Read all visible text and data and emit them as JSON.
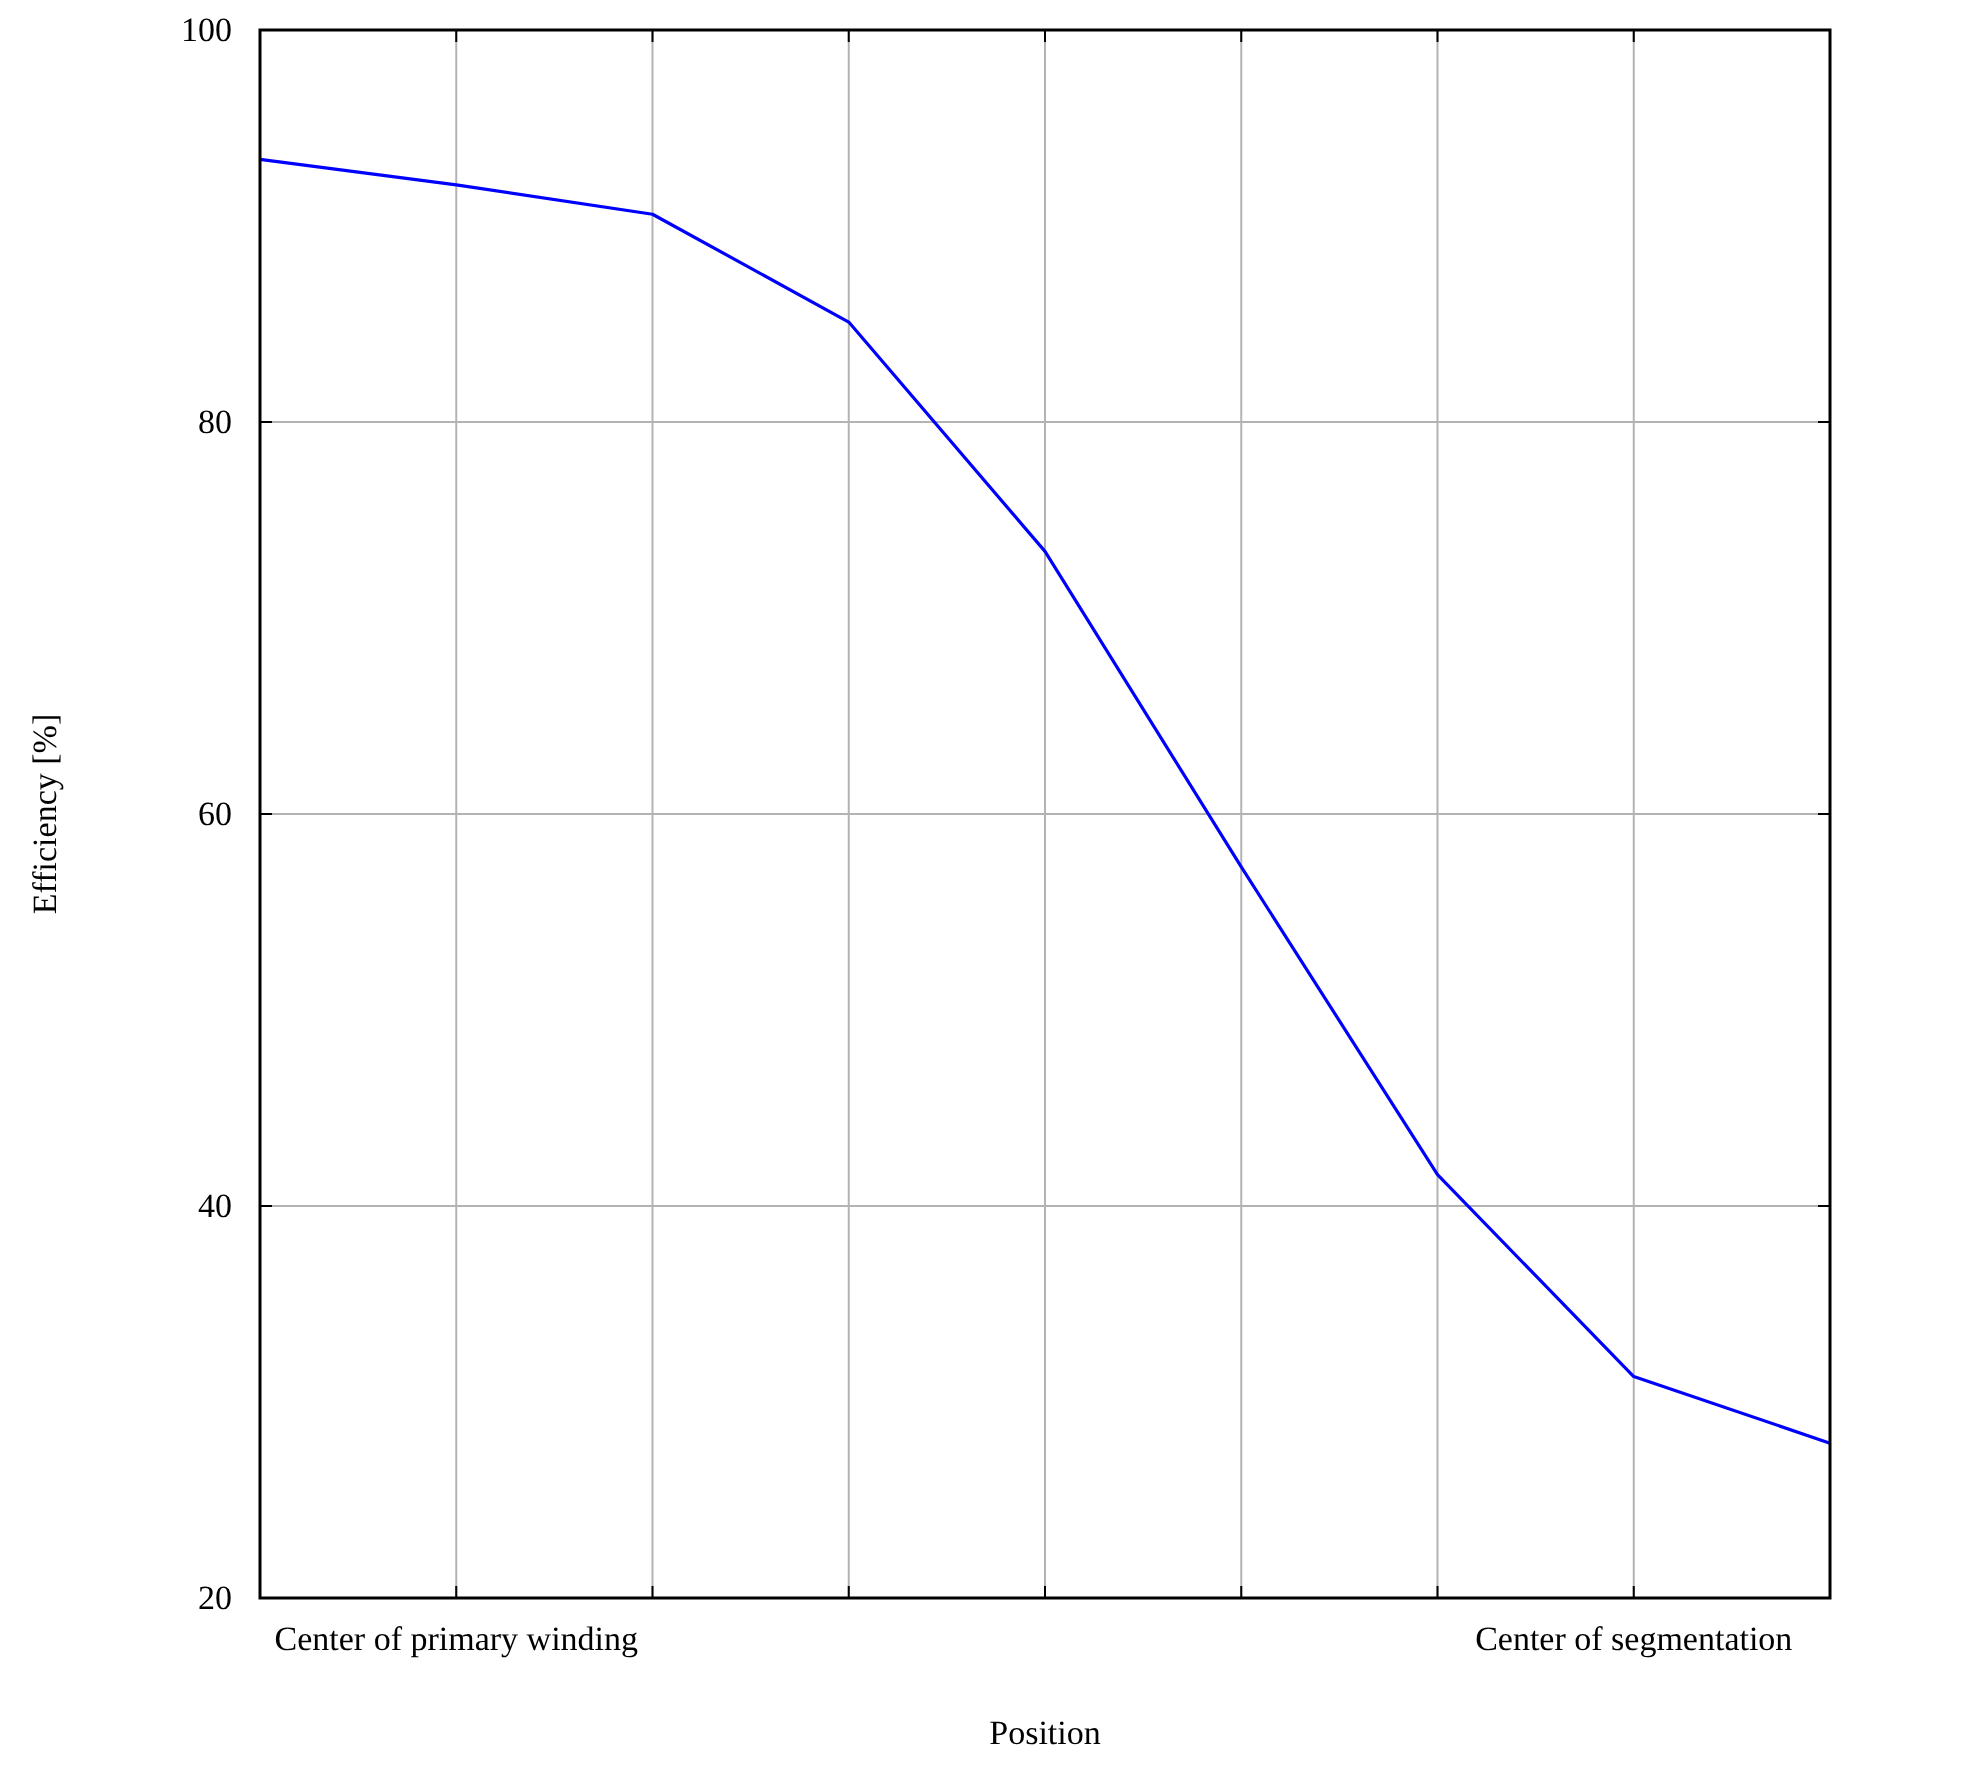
{
  "chart_data": {
    "type": "line",
    "xlabel": "Position",
    "ylabel": "Efficiency [%]",
    "categories": [
      null,
      "Center of primary winding",
      null,
      null,
      null,
      null,
      null,
      "Center of segmentation",
      null
    ],
    "series": [
      {
        "color": "#0000ff",
        "values": [
          93.4,
          92.1,
          90.6,
          85.1,
          73.4,
          57.3,
          41.6,
          31.3,
          27.9
        ]
      }
    ],
    "ylim": [
      20,
      100
    ],
    "yticks": [
      20,
      40,
      60,
      80,
      100
    ],
    "grid": true,
    "marker": "none",
    "line_style": "solid"
  }
}
